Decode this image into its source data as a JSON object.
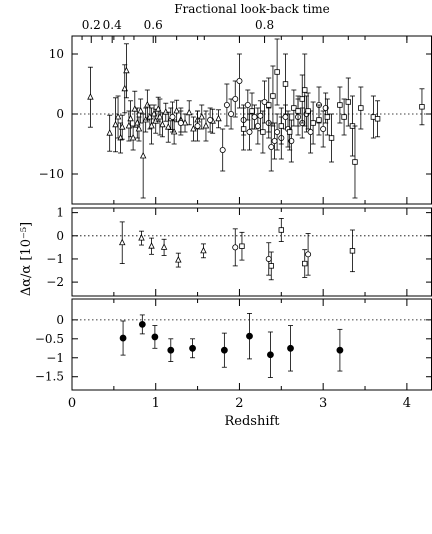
{
  "chart_data": [
    {
      "type": "scatter",
      "panel": "top",
      "title": "Fractional look-back time",
      "top_axis_ticks": [
        "0.2",
        "0.4",
        "0.6",
        "0.8"
      ],
      "ylabel": "",
      "ylim": [
        -15,
        13
      ],
      "yticks": [
        -10,
        0,
        10
      ],
      "xlim": [
        0,
        4.3
      ],
      "reference_line": 0,
      "series": [
        {
          "marker": "triangle",
          "points": [
            {
              "x": 0.22,
              "y": 2.8,
              "err": 5.0
            },
            {
              "x": 0.45,
              "y": -3.2,
              "err": 3.0
            },
            {
              "x": 0.52,
              "y": -1.8,
              "err": 4.5
            },
            {
              "x": 0.55,
              "y": -0.5,
              "err": 3.5
            },
            {
              "x": 0.58,
              "y": -4.0,
              "err": 2.5
            },
            {
              "x": 0.6,
              "y": -2.2,
              "err": 2.0
            },
            {
              "x": 0.63,
              "y": 4.2,
              "err": 4.0
            },
            {
              "x": 0.65,
              "y": 7.2,
              "err": 4.5
            },
            {
              "x": 0.68,
              "y": -2.0,
              "err": 2.5
            },
            {
              "x": 0.7,
              "y": -0.8,
              "err": 3.0
            },
            {
              "x": 0.73,
              "y": -4.0,
              "err": 2.0
            },
            {
              "x": 0.75,
              "y": 0.8,
              "err": 3.0
            },
            {
              "x": 0.78,
              "y": -1.5,
              "err": 2.5
            },
            {
              "x": 0.8,
              "y": -2.5,
              "err": 2.0
            },
            {
              "x": 0.82,
              "y": 0.5,
              "err": 2.0
            },
            {
              "x": 0.85,
              "y": -7.0,
              "err": 7.0
            },
            {
              "x": 0.88,
              "y": -1.0,
              "err": 2.0
            },
            {
              "x": 0.9,
              "y": 1.5,
              "err": 2.5
            },
            {
              "x": 0.93,
              "y": -0.5,
              "err": 2.0
            },
            {
              "x": 0.95,
              "y": -2.0,
              "err": 3.0
            },
            {
              "x": 0.98,
              "y": 0.0,
              "err": 1.5
            },
            {
              "x": 1.0,
              "y": -1.2,
              "err": 2.0
            },
            {
              "x": 1.03,
              "y": 0.8,
              "err": 2.0
            },
            {
              "x": 1.05,
              "y": -0.5,
              "err": 3.0
            },
            {
              "x": 1.08,
              "y": -1.8,
              "err": 2.0
            },
            {
              "x": 1.12,
              "y": 0.3,
              "err": 1.5
            },
            {
              "x": 1.15,
              "y": -2.2,
              "err": 2.5
            },
            {
              "x": 1.18,
              "y": -0.8,
              "err": 1.8
            },
            {
              "x": 1.22,
              "y": -3.0,
              "err": 2.0
            },
            {
              "x": 1.25,
              "y": 0.5,
              "err": 1.8
            },
            {
              "x": 1.3,
              "y": -1.0,
              "err": 2.0
            },
            {
              "x": 1.35,
              "y": -1.5,
              "err": 1.5
            },
            {
              "x": 1.4,
              "y": 0.2,
              "err": 2.0
            },
            {
              "x": 1.45,
              "y": -2.5,
              "err": 2.0
            },
            {
              "x": 1.5,
              "y": -1.0,
              "err": 1.5
            },
            {
              "x": 1.55,
              "y": -0.5,
              "err": 2.0
            },
            {
              "x": 1.6,
              "y": -2.0,
              "err": 2.5
            },
            {
              "x": 1.68,
              "y": -1.2,
              "err": 2.0
            },
            {
              "x": 1.75,
              "y": -0.8,
              "err": 1.5
            }
          ]
        },
        {
          "marker": "circle",
          "points": [
            {
              "x": 1.2,
              "y": -0.5,
              "err": 2.5
            },
            {
              "x": 1.3,
              "y": -1.5,
              "err": 2.0
            },
            {
              "x": 1.5,
              "y": -2.0,
              "err": 2.5
            },
            {
              "x": 1.65,
              "y": -1.0,
              "err": 2.0
            },
            {
              "x": 1.8,
              "y": -6.0,
              "err": 3.5
            },
            {
              "x": 1.85,
              "y": 1.5,
              "err": 3.5
            },
            {
              "x": 1.9,
              "y": 0.0,
              "err": 2.5
            },
            {
              "x": 1.95,
              "y": 2.5,
              "err": 3.0
            },
            {
              "x": 2.0,
              "y": 5.5,
              "err": 4.5
            },
            {
              "x": 2.05,
              "y": -1.0,
              "err": 2.5
            },
            {
              "x": 2.1,
              "y": 1.5,
              "err": 2.5
            },
            {
              "x": 2.12,
              "y": -3.0,
              "err": 3.0
            },
            {
              "x": 2.18,
              "y": -0.5,
              "err": 2.0
            },
            {
              "x": 2.22,
              "y": -2.0,
              "err": 3.0
            },
            {
              "x": 2.25,
              "y": -0.3,
              "err": 2.5
            },
            {
              "x": 2.3,
              "y": 2.0,
              "err": 3.5
            },
            {
              "x": 2.35,
              "y": -1.5,
              "err": 2.5
            },
            {
              "x": 2.38,
              "y": -5.5,
              "err": 4.0
            },
            {
              "x": 2.42,
              "y": -4.5,
              "err": 3.0
            },
            {
              "x": 2.45,
              "y": -3.0,
              "err": 3.0
            },
            {
              "x": 2.5,
              "y": -4.0,
              "err": 3.5
            },
            {
              "x": 2.55,
              "y": -0.5,
              "err": 2.0
            },
            {
              "x": 2.58,
              "y": -2.5,
              "err": 3.0
            },
            {
              "x": 2.62,
              "y": -4.5,
              "err": 3.5
            },
            {
              "x": 2.7,
              "y": -0.5,
              "err": 3.0
            },
            {
              "x": 2.75,
              "y": -1.5,
              "err": 2.5
            },
            {
              "x": 2.8,
              "y": 0.0,
              "err": 3.0
            },
            {
              "x": 2.85,
              "y": -3.0,
              "err": 3.5
            },
            {
              "x": 2.95,
              "y": 1.5,
              "err": 3.0
            },
            {
              "x": 3.0,
              "y": -2.5,
              "err": 3.0
            },
            {
              "x": 3.03,
              "y": 1.0,
              "err": 2.5
            }
          ]
        },
        {
          "marker": "square",
          "points": [
            {
              "x": 2.05,
              "y": -2.5,
              "err": 3.5
            },
            {
              "x": 2.15,
              "y": 0.5,
              "err": 3.0
            },
            {
              "x": 2.28,
              "y": -3.0,
              "err": 3.5
            },
            {
              "x": 2.35,
              "y": 1.5,
              "err": 4.5
            },
            {
              "x": 2.4,
              "y": 3.0,
              "err": 5.0
            },
            {
              "x": 2.45,
              "y": 7.0,
              "err": 5.5
            },
            {
              "x": 2.5,
              "y": -2.0,
              "err": 3.0
            },
            {
              "x": 2.55,
              "y": 5.0,
              "err": 5.0
            },
            {
              "x": 2.6,
              "y": -3.0,
              "err": 3.0
            },
            {
              "x": 2.65,
              "y": 1.0,
              "err": 3.0
            },
            {
              "x": 2.7,
              "y": 0.5,
              "err": 2.5
            },
            {
              "x": 2.75,
              "y": 2.5,
              "err": 4.0
            },
            {
              "x": 2.78,
              "y": 4.0,
              "err": 6.0
            },
            {
              "x": 2.82,
              "y": 0.5,
              "err": 3.0
            },
            {
              "x": 2.88,
              "y": -1.5,
              "err": 3.5
            },
            {
              "x": 2.95,
              "y": -1.0,
              "err": 2.5
            },
            {
              "x": 3.05,
              "y": -0.5,
              "err": 3.0
            },
            {
              "x": 3.1,
              "y": -4.0,
              "err": 4.0
            },
            {
              "x": 3.2,
              "y": 1.5,
              "err": 3.0
            },
            {
              "x": 3.25,
              "y": -0.5,
              "err": 3.0
            },
            {
              "x": 3.3,
              "y": 2.0,
              "err": 4.0
            },
            {
              "x": 3.35,
              "y": -2.0,
              "err": 5.0
            },
            {
              "x": 3.38,
              "y": -8.0,
              "err": 6.0
            },
            {
              "x": 3.45,
              "y": 1.0,
              "err": 3.5
            },
            {
              "x": 3.6,
              "y": -0.5,
              "err": 3.5
            },
            {
              "x": 3.65,
              "y": -0.8,
              "err": 3.0
            },
            {
              "x": 4.18,
              "y": 1.2,
              "err": 3.0
            }
          ]
        }
      ]
    },
    {
      "type": "scatter",
      "panel": "middle",
      "title": "",
      "ylabel": "Δα/α [10⁻⁵]",
      "ylim": [
        -2.6,
        1.2
      ],
      "yticks": [
        1,
        0,
        -1,
        -2
      ],
      "xlim": [
        0,
        4.3
      ],
      "reference_line": 0,
      "series": [
        {
          "marker": "triangle",
          "points": [
            {
              "x": 0.6,
              "y": -0.3,
              "err": 0.9
            },
            {
              "x": 0.83,
              "y": -0.1,
              "err": 0.3
            },
            {
              "x": 0.95,
              "y": -0.45,
              "err": 0.35
            },
            {
              "x": 1.1,
              "y": -0.5,
              "err": 0.35
            },
            {
              "x": 1.27,
              "y": -1.05,
              "err": 0.3
            },
            {
              "x": 1.57,
              "y": -0.65,
              "err": 0.3
            }
          ]
        },
        {
          "marker": "circle",
          "points": [
            {
              "x": 1.95,
              "y": -0.5,
              "err": 0.8
            },
            {
              "x": 2.35,
              "y": -1.0,
              "err": 0.7
            },
            {
              "x": 2.82,
              "y": -0.8,
              "err": 0.9
            }
          ]
        },
        {
          "marker": "square",
          "points": [
            {
              "x": 2.03,
              "y": -0.45,
              "err": 0.6
            },
            {
              "x": 2.38,
              "y": -1.3,
              "err": 0.6
            },
            {
              "x": 2.5,
              "y": 0.25,
              "err": 0.5
            },
            {
              "x": 2.78,
              "y": -1.2,
              "err": 0.6
            },
            {
              "x": 3.35,
              "y": -0.65,
              "err": 0.9
            }
          ]
        }
      ]
    },
    {
      "type": "scatter",
      "panel": "bottom",
      "title": "",
      "xlabel": "Redshift",
      "ylabel": "",
      "xlim": [
        0,
        4.3
      ],
      "xticks": [
        0,
        1,
        2,
        3,
        4
      ],
      "ylim": [
        -1.85,
        0.55
      ],
      "yticks": [
        "0",
        "-0.5",
        "-1",
        "-1.5"
      ],
      "reference_line": 0,
      "series": [
        {
          "marker": "filled-circle",
          "points": [
            {
              "x": 0.61,
              "y": -0.48,
              "err": 0.45
            },
            {
              "x": 0.84,
              "y": -0.12,
              "err": 0.25
            },
            {
              "x": 0.99,
              "y": -0.45,
              "err": 0.3
            },
            {
              "x": 1.18,
              "y": -0.8,
              "err": 0.3
            },
            {
              "x": 1.44,
              "y": -0.75,
              "err": 0.25
            },
            {
              "x": 1.82,
              "y": -0.8,
              "err": 0.45
            },
            {
              "x": 2.12,
              "y": -0.43,
              "err": 0.6
            },
            {
              "x": 2.37,
              "y": -0.92,
              "err": 0.6
            },
            {
              "x": 2.61,
              "y": -0.75,
              "err": 0.6
            },
            {
              "x": 3.2,
              "y": -0.8,
              "err": 0.55
            }
          ]
        }
      ]
    }
  ]
}
